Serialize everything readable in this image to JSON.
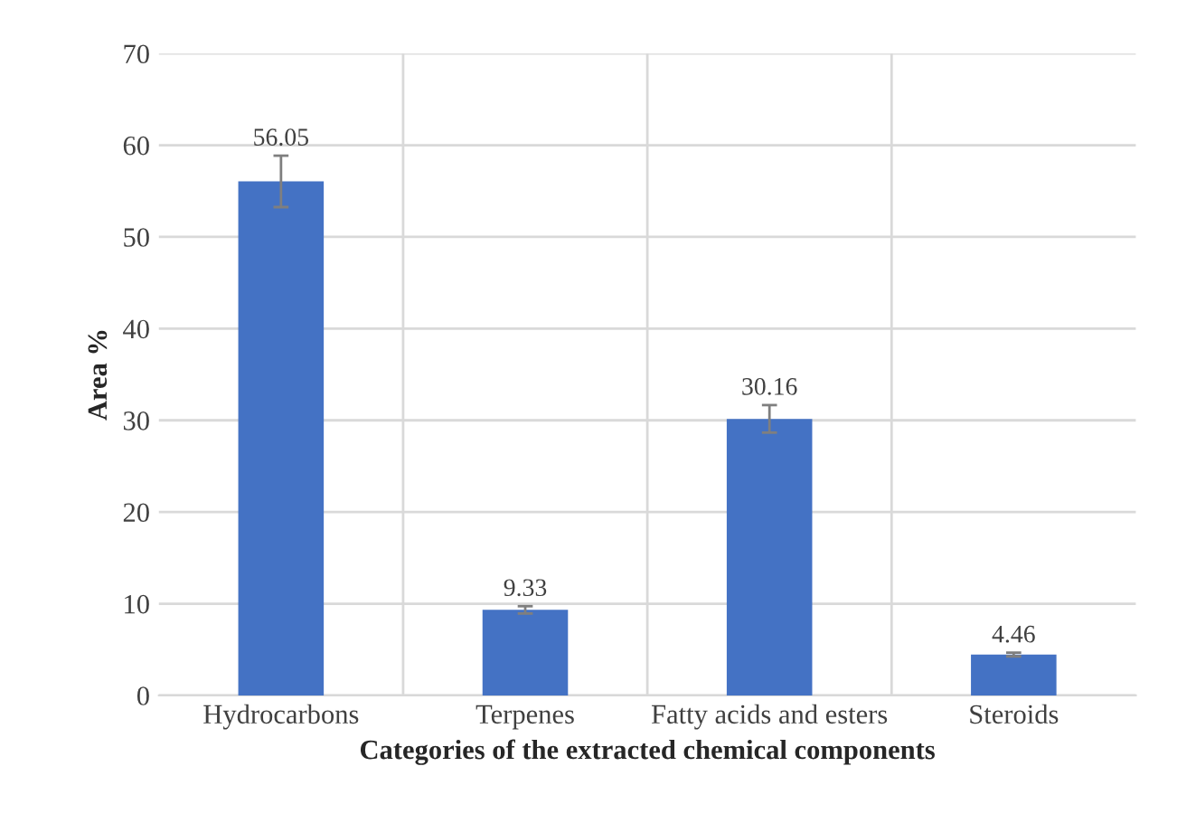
{
  "chart_data": {
    "type": "bar",
    "xlabel": "Categories of the extracted chemical components",
    "ylabel": "Area %",
    "categories": [
      "Hydrocarbons",
      "Terpenes",
      "Fatty acids and esters",
      "Steroids"
    ],
    "values": [
      56.05,
      9.33,
      30.16,
      4.46
    ],
    "errors": [
      2.8,
      0.4,
      1.5,
      0.2
    ],
    "color": "#4472c4",
    "data_labels": true,
    "ylim": [
      0,
      70
    ],
    "yticks": [
      0,
      10,
      20,
      30,
      40,
      50,
      60,
      70
    ],
    "grid": true
  }
}
